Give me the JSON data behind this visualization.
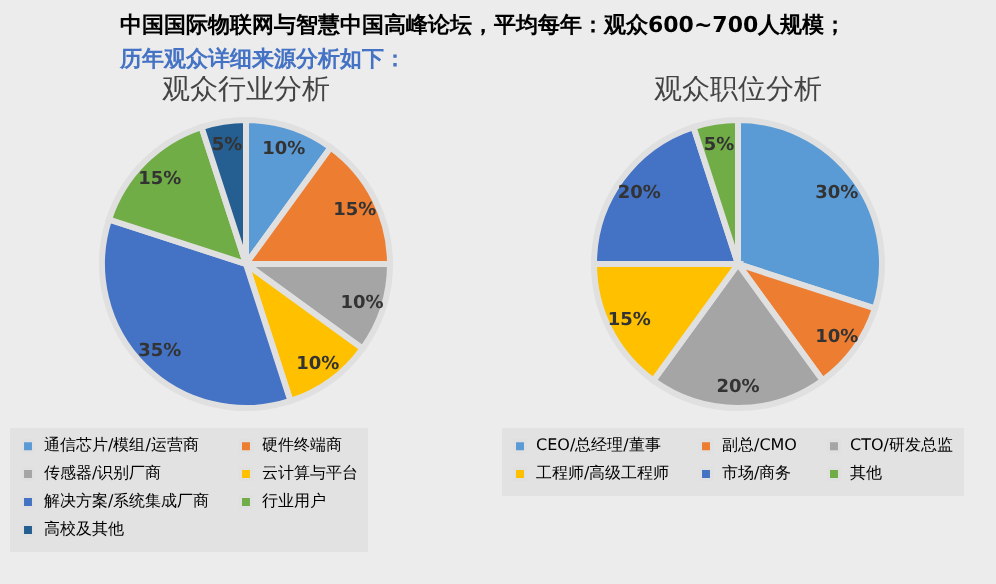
{
  "chart_data": [
    {
      "type": "pie",
      "title": "观众行业分析",
      "annotations": [
        "中国国际物联网与智慧中国高峰论坛，平均每年：观众600~700人规模；",
        "历年观众详细来源分析如下："
      ],
      "categories": [
        "通信芯片/模组/运营商",
        "硬件终端商",
        "传感器/识别厂商",
        "云计算与平台",
        "解决方案/系统集成厂商",
        "行业用户",
        "高校及其他"
      ],
      "values": [
        10,
        15,
        10,
        10,
        35,
        15,
        5
      ],
      "colors": [
        "#5b9bd5",
        "#ed7d31",
        "#a5a5a5",
        "#ffc000",
        "#4472c4",
        "#70ad47",
        "#255e91"
      ],
      "value_labels": [
        "10%",
        "15%",
        "10%",
        "10%",
        "35%",
        "15%",
        "5%"
      ],
      "legend": "bottom"
    },
    {
      "type": "pie",
      "title": "观众职位分析",
      "categories": [
        "CEO/总经理/董事",
        "副总/CMO",
        "CTO/研发总监",
        "工程师/高级工程师",
        "市场/商务",
        "其他"
      ],
      "values": [
        30,
        10,
        20,
        15,
        20,
        5
      ],
      "colors": [
        "#5b9bd5",
        "#ed7d31",
        "#a5a5a5",
        "#ffc000",
        "#4472c4",
        "#70ad47"
      ],
      "value_labels": [
        "30%",
        "10%",
        "20%",
        "15%",
        "20%",
        "5%"
      ],
      "legend": "bottom"
    }
  ]
}
